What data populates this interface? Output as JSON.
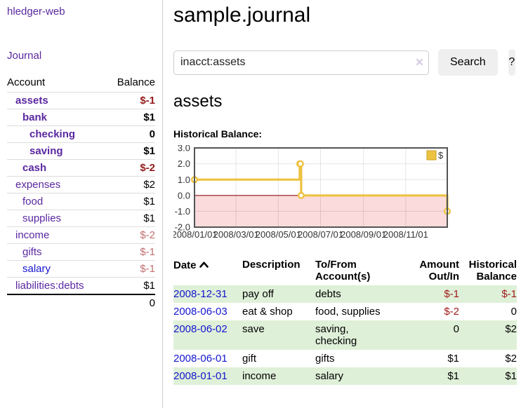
{
  "colors": {
    "link_purple": "#5a28a0",
    "link_blue": "#1515d0",
    "negative_strong": "#961b1b",
    "negative_soft": "#c26f6f",
    "negative_table": "#a11a1a",
    "row_stripe_green": "#dff0d8",
    "series_gold": "#EDC240",
    "chart_negative_fill": "#fbdbdb",
    "chart_zero_line": "#8f1414",
    "chart_border": "#545454"
  },
  "sidebar": {
    "brand": "hledger-web",
    "nav": [
      {
        "label": "Journal"
      }
    ],
    "accounts_table": {
      "headers": [
        "Account",
        "Balance"
      ],
      "rows": [
        {
          "account": "assets",
          "indent": 1,
          "bold": true,
          "balance": "$-1",
          "balance_class": "neg-strong",
          "link_class": ""
        },
        {
          "account": "bank",
          "indent": 2,
          "bold": true,
          "balance": "$1",
          "balance_class": "bold",
          "link_class": ""
        },
        {
          "account": "checking",
          "indent": 3,
          "bold": true,
          "balance": "0",
          "balance_class": "bold",
          "link_class": ""
        },
        {
          "account": "saving",
          "indent": 3,
          "bold": true,
          "balance": "$1",
          "balance_class": "bold",
          "link_class": ""
        },
        {
          "account": "cash",
          "indent": 2,
          "bold": true,
          "balance": "$-2",
          "balance_class": "neg-strong",
          "link_class": ""
        },
        {
          "account": "expenses",
          "indent": 1,
          "bold": false,
          "balance": "$2",
          "balance_class": "",
          "link_class": ""
        },
        {
          "account": "food",
          "indent": 2,
          "bold": false,
          "balance": "$1",
          "balance_class": "",
          "link_class": ""
        },
        {
          "account": "supplies",
          "indent": 2,
          "bold": false,
          "balance": "$1",
          "balance_class": "",
          "link_class": ""
        },
        {
          "account": "income",
          "indent": 1,
          "bold": false,
          "balance": "$-2",
          "balance_class": "neg-soft",
          "link_class": ""
        },
        {
          "account": "gifts",
          "indent": 2,
          "bold": false,
          "balance": "$-1",
          "balance_class": "neg-soft",
          "link_class": ""
        },
        {
          "account": "salary",
          "indent": 2,
          "bold": false,
          "balance": "$-1",
          "balance_class": "neg-soft",
          "link_class": "blue"
        },
        {
          "account": "liabilities:debts",
          "indent": 1,
          "bold": false,
          "balance": "$1",
          "balance_class": "",
          "link_class": ""
        }
      ],
      "total": "0"
    }
  },
  "main": {
    "title": "sample.journal",
    "search": {
      "value": "inacct:assets",
      "clear_icon": "×",
      "button": "Search",
      "help_button": "?"
    },
    "account_heading": "assets",
    "chart_label": "Historical Balance:",
    "transactions": {
      "headers": {
        "date": "Date",
        "description": "Description",
        "accounts": "To/From Account(s)",
        "amount": "Amount Out/In",
        "balance": "Historical Balance"
      },
      "rows": [
        {
          "date": "2008-12-31",
          "description": "pay off",
          "accounts": "debts",
          "amount": "$-1",
          "amount_class": "neg",
          "balance": "$-1",
          "balance_class": "neg"
        },
        {
          "date": "2008-06-03",
          "description": "eat & shop",
          "accounts": "food, supplies",
          "amount": "$-2",
          "amount_class": "neg",
          "balance": "0",
          "balance_class": ""
        },
        {
          "date": "2008-06-02",
          "description": "save",
          "accounts": "saving, checking",
          "amount": "0",
          "amount_class": "",
          "balance": "$2",
          "balance_class": ""
        },
        {
          "date": "2008-06-01",
          "description": "gift",
          "accounts": "gifts",
          "amount": "$1",
          "amount_class": "",
          "balance": "$2",
          "balance_class": ""
        },
        {
          "date": "2008-01-01",
          "description": "income",
          "accounts": "salary",
          "amount": "$1",
          "amount_class": "",
          "balance": "$1",
          "balance_class": ""
        }
      ]
    }
  },
  "chart_data": {
    "type": "line",
    "step": true,
    "title": "Historical Balance",
    "xlabel": "",
    "ylabel": "",
    "ylim": [
      -2.0,
      3.0
    ],
    "yticks": [
      "3.0",
      "2.0",
      "1.0",
      "0.0",
      "-1.0",
      "-2.0"
    ],
    "xticks": [
      "2008/01/01",
      "2008/03/01",
      "2008/05/01",
      "2008/07/01",
      "2008/09/01",
      "2008/11/01"
    ],
    "xrange": [
      "2008-01-01",
      "2008-12-31"
    ],
    "grid": true,
    "legend_position": "top-right",
    "series": [
      {
        "name": "$",
        "color": "#EDC240",
        "points": [
          [
            "2008-01-01",
            1
          ],
          [
            "2008-06-01",
            2
          ],
          [
            "2008-06-02",
            2
          ],
          [
            "2008-06-03",
            0
          ],
          [
            "2008-12-31",
            -1
          ]
        ]
      }
    ],
    "negative_region_fill": "#fbdbdb",
    "zero_line_color": "#8f1414"
  }
}
